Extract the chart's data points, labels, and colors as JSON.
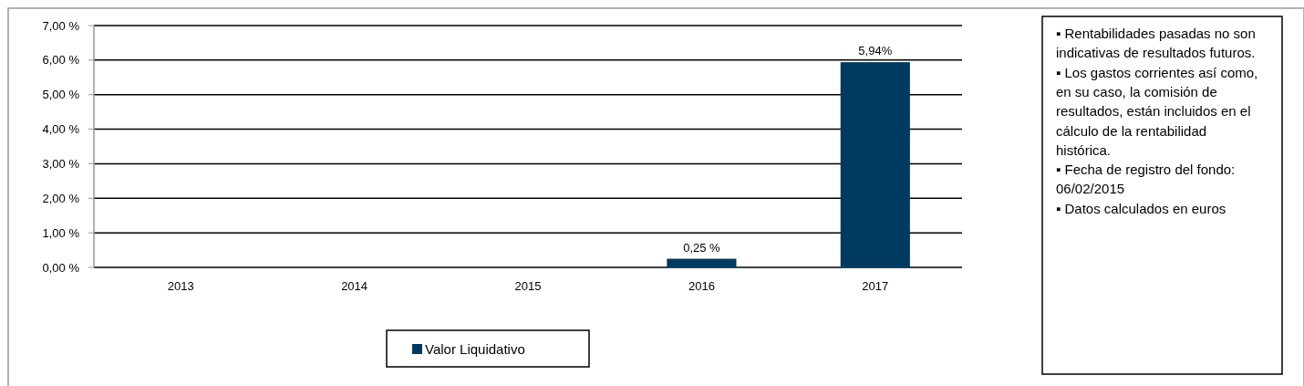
{
  "chart_data": {
    "type": "bar",
    "categories": [
      "2013",
      "2014",
      "2015",
      "2016",
      "2017"
    ],
    "series": [
      {
        "name": "Valor Liquidativo",
        "color": "#003a60",
        "values": [
          null,
          null,
          null,
          0.25,
          5.94
        ],
        "value_labels": [
          null,
          null,
          null,
          "0,25 %",
          "5,94%"
        ]
      }
    ],
    "ylim": [
      0,
      7
    ],
    "yticks": [
      {
        "value": 0,
        "label": "0,00 %"
      },
      {
        "value": 1,
        "label": "1,00 %"
      },
      {
        "value": 2,
        "label": "2,00 %"
      },
      {
        "value": 3,
        "label": "3,00 %"
      },
      {
        "value": 4,
        "label": "4,00 %"
      },
      {
        "value": 5,
        "label": "5,00 %"
      },
      {
        "value": 6,
        "label": "6,00 %"
      },
      {
        "value": 7,
        "label": "7,00 %"
      }
    ],
    "grid": "y",
    "legend": "bottom",
    "annotations": [
      "▪ Rentabilidades pasadas no son indicativas de resultados futuros.",
      "▪ Los gastos corrientes así como, en su caso, la comisión de resultados, están incluidos en el cálculo de la rentabilidad histórica.",
      "▪ Fecha de registro del fondo: 06/02/2015",
      "▪ Datos calculados en euros"
    ]
  }
}
